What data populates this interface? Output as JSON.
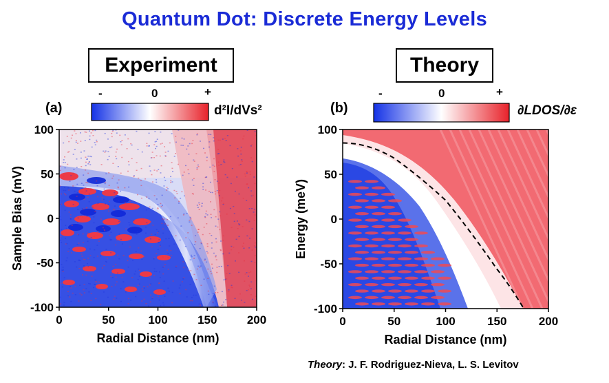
{
  "title": "Quantum Dot: Discrete Energy Levels",
  "panels": {
    "experiment_label": "Experiment",
    "theory_label": "Theory"
  },
  "colorbar_a": {
    "min_label": "-",
    "zero_label": "0",
    "max_label": "+",
    "quantity": "d²I/dVs²"
  },
  "colorbar_b": {
    "min_label": "-",
    "zero_label": "0",
    "max_label": "+",
    "quantity": "∂LDOS/∂ε"
  },
  "credit": {
    "prefix": "Theory",
    "names": ": J. F. Rodriguez-Nieva, L. S. Levitov"
  },
  "colors": {
    "negative": "#1432e6",
    "zero": "#ffffff",
    "positive": "#e8222a",
    "title": "#1a2bd6"
  },
  "chart_data": [
    {
      "type": "heatmap",
      "panel": "(a)",
      "xlabel": "Radial Distance (nm)",
      "ylabel": "Sample Bias (mV)",
      "xlim": [
        0,
        200
      ],
      "ylim": [
        -100,
        100
      ],
      "xticks": [
        0,
        50,
        100,
        150,
        200
      ],
      "yticks": [
        100,
        50,
        0,
        -50,
        -100
      ],
      "colormap": [
        "blue",
        "white",
        "red"
      ]
    },
    {
      "type": "heatmap",
      "panel": "(b)",
      "xlabel": "Radial Distance (nm)",
      "ylabel": "Energy (meV)",
      "xlim": [
        0,
        200
      ],
      "ylim": [
        -100,
        100
      ],
      "xticks": [
        0,
        50,
        100,
        150,
        200
      ],
      "yticks": [
        100,
        50,
        0,
        -50,
        -100
      ],
      "colormap": [
        "blue",
        "white",
        "red"
      ],
      "dashed_boundary": [
        [
          0,
          85
        ],
        [
          50,
          68
        ],
        [
          100,
          21
        ],
        [
          150,
          -56
        ],
        [
          176,
          -100
        ]
      ]
    }
  ]
}
